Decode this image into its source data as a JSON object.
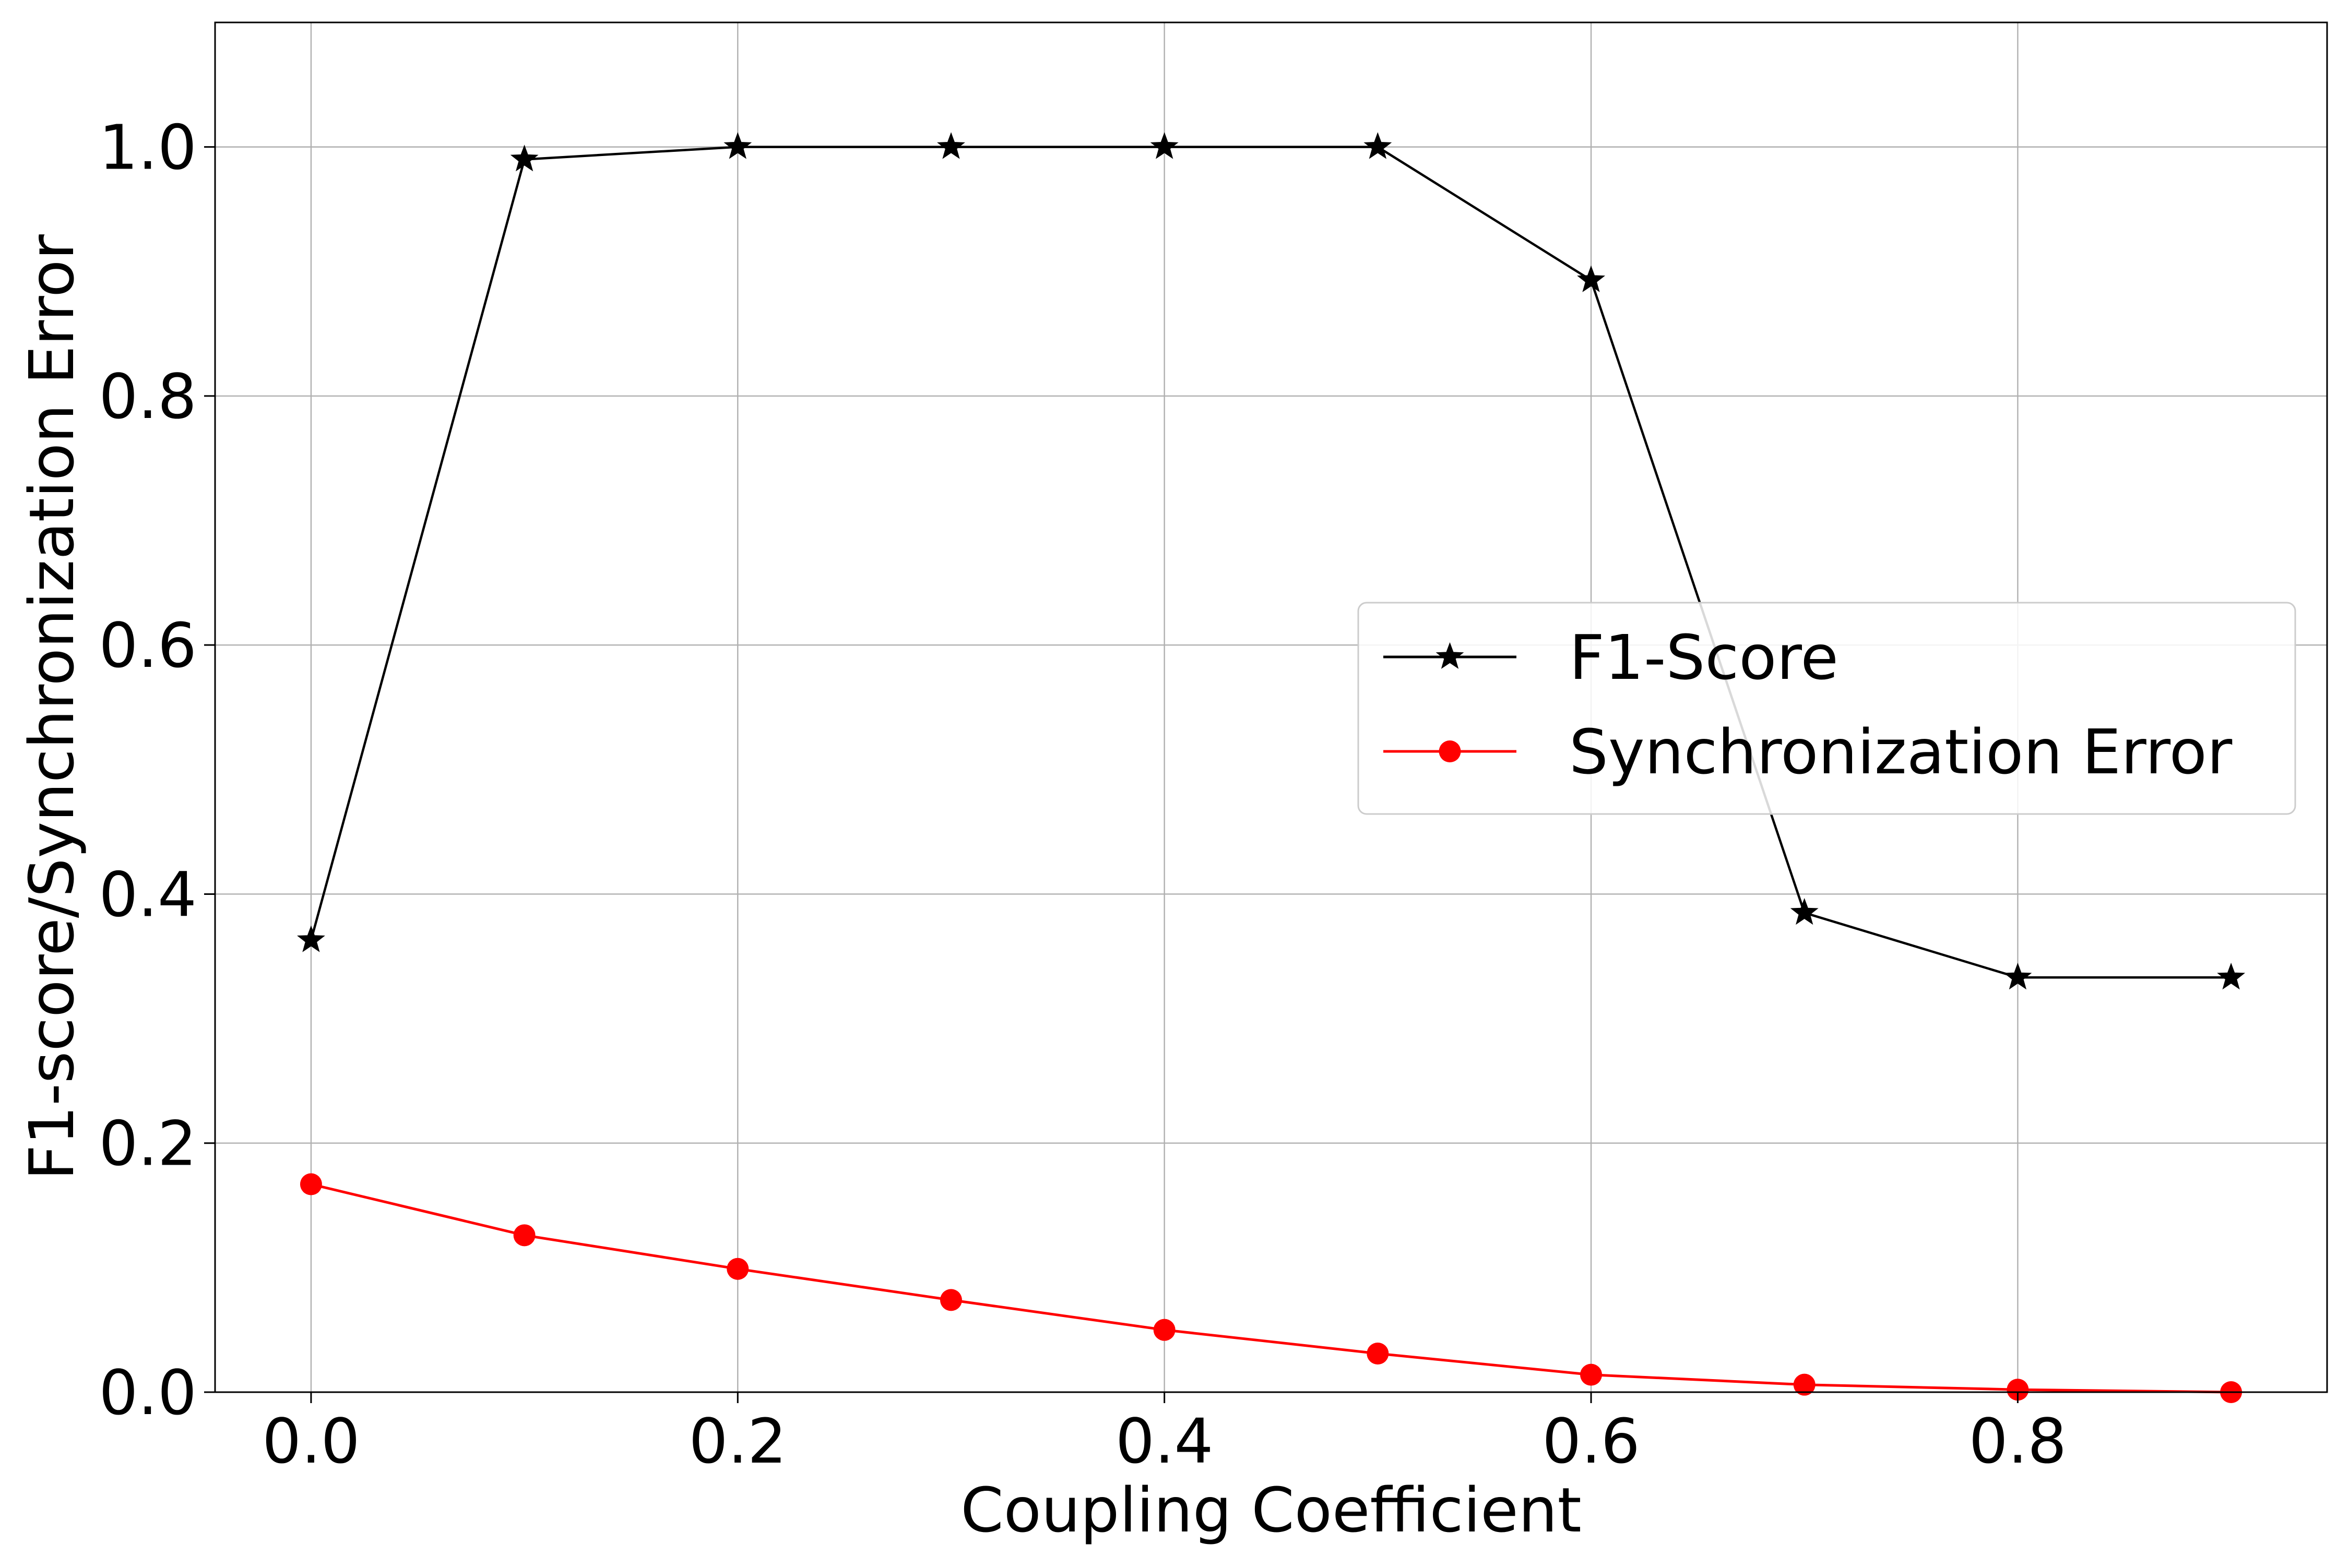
{
  "chart_data": {
    "type": "line",
    "xlabel": "Coupling Coefficient",
    "ylabel": "F1-score/Synchronization Error",
    "xlim": [
      -0.045,
      0.945
    ],
    "ylim": [
      0.0,
      1.1
    ],
    "grid": true,
    "legend_position": "center-right",
    "x": [
      0.0,
      0.1,
      0.2,
      0.3,
      0.4,
      0.5,
      0.6,
      0.7,
      0.8,
      0.9
    ],
    "x_ticks": [
      0.0,
      0.2,
      0.4,
      0.6,
      0.8
    ],
    "x_tick_labels": [
      "0.0",
      "0.2",
      "0.4",
      "0.6",
      "0.8"
    ],
    "y_ticks": [
      0.0,
      0.2,
      0.4,
      0.6,
      0.8,
      1.0
    ],
    "y_tick_labels": [
      "0.0",
      "0.2",
      "0.4",
      "0.6",
      "0.8",
      "1.0"
    ],
    "series": [
      {
        "name": "F1-Score",
        "color": "#000000",
        "marker": "star",
        "values": [
          0.363,
          0.99,
          1.0,
          1.0,
          1.0,
          1.0,
          0.893,
          0.385,
          0.333,
          0.333
        ]
      },
      {
        "name": "Synchronization Error",
        "color": "#ff0000",
        "marker": "circle",
        "values": [
          0.167,
          0.126,
          0.099,
          0.074,
          0.05,
          0.031,
          0.014,
          0.006,
          0.002,
          0.0
        ]
      }
    ]
  }
}
